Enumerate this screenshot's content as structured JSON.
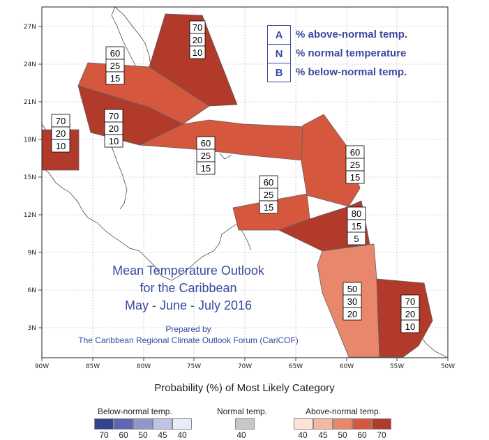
{
  "colors": {
    "a70": "#b13a2b",
    "a60": "#d4573e",
    "a50": "#e8876c",
    "a45": "#f4b9a4",
    "a40": "#fde2d8",
    "normal": "#c8c8c8",
    "b40": "#e9ebf7",
    "b45": "#bfc4e6",
    "b50": "#9197cb",
    "b60": "#5d66b3",
    "b70": "#34428f",
    "text_blue": "#3a4aa0"
  },
  "x_ticks": [
    "90W",
    "85W",
    "80W",
    "75W",
    "70W",
    "65W",
    "60W",
    "55W",
    "50W"
  ],
  "y_ticks": [
    "27N",
    "24N",
    "21N",
    "18N",
    "15N",
    "12N",
    "9N",
    "6N",
    "3N"
  ],
  "legend_keys": [
    {
      "key": "A",
      "text": "% above-normal temp."
    },
    {
      "key": "N",
      "text": "% normal temperature"
    },
    {
      "key": "B",
      "text": "% below-normal temp."
    }
  ],
  "regions": [
    {
      "name": "bahamas-north",
      "probs": [
        "70",
        "20",
        "10"
      ],
      "category": "above-normal",
      "level": 70
    },
    {
      "name": "cuba-west",
      "probs": [
        "60",
        "25",
        "15"
      ],
      "category": "above-normal",
      "level": 60
    },
    {
      "name": "cuba-east-jamaica",
      "probs": [
        "70",
        "20",
        "10"
      ],
      "category": "above-normal",
      "level": 70
    },
    {
      "name": "belize",
      "probs": [
        "70",
        "20",
        "10"
      ],
      "category": "above-normal",
      "level": 70
    },
    {
      "name": "hispaniola-pr",
      "probs": [
        "60",
        "25",
        "15"
      ],
      "category": "above-normal",
      "level": 60
    },
    {
      "name": "leeward-islands",
      "probs": [
        "60",
        "25",
        "15"
      ],
      "category": "above-normal",
      "level": 60
    },
    {
      "name": "abc-islands",
      "probs": [
        "60",
        "25",
        "15"
      ],
      "category": "above-normal",
      "level": 60
    },
    {
      "name": "trinidad-windward",
      "probs": [
        "80",
        "15",
        "5"
      ],
      "category": "above-normal",
      "level": 80
    },
    {
      "name": "guyana",
      "probs": [
        "50",
        "30",
        "20"
      ],
      "category": "above-normal",
      "level": 50
    },
    {
      "name": "suriname-guiana",
      "probs": [
        "70",
        "20",
        "10"
      ],
      "category": "above-normal",
      "level": 70
    }
  ],
  "title_lines": [
    "Mean Temperature Outlook",
    "for the Caribbean",
    "May - June - July 2016"
  ],
  "prepared_lines": [
    "Prepared by",
    "The Caribbean Regional Climate Outlook Forum (CariCOF)"
  ],
  "colorbar": {
    "heading": "Probability (%) of Most Likely Category",
    "below": {
      "label": "Below-normal temp.",
      "values": [
        "70",
        "60",
        "50",
        "45",
        "40"
      ]
    },
    "normal": {
      "label": "Normal temp.",
      "values": [
        "40"
      ]
    },
    "above": {
      "label": "Above-normal temp.",
      "values": [
        "40",
        "45",
        "50",
        "60",
        "70"
      ]
    }
  }
}
